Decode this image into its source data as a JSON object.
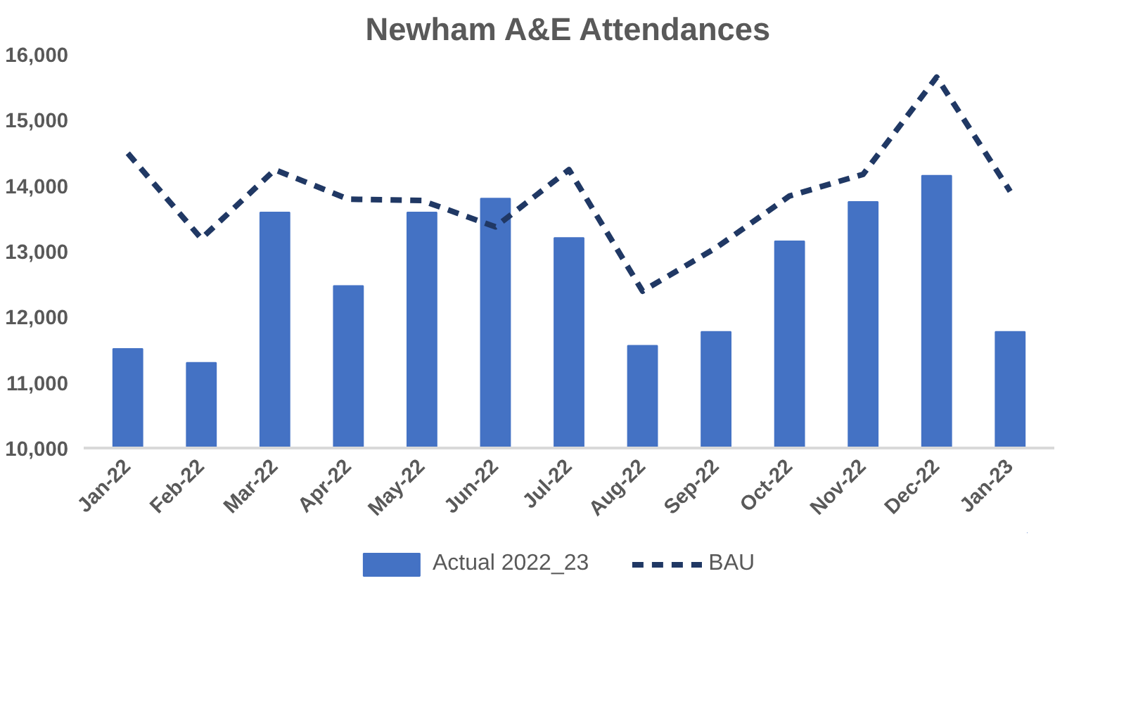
{
  "chart_data": {
    "type": "bar",
    "title": "Newham A&E Attendances",
    "categories": [
      "Jan-22",
      "Feb-22",
      "Mar-22",
      "Apr-22",
      "May-22",
      "Jun-22",
      "Jul-22",
      "Aug-22",
      "Sep-22",
      "Oct-22",
      "Nov-22",
      "Dec-22",
      "Jan-23"
    ],
    "series": [
      {
        "name": "Actual 2022_23",
        "color": "#4472c4",
        "values": [
          11510,
          11300,
          13590,
          12470,
          13590,
          13800,
          13200,
          11560,
          11770,
          13150,
          13750,
          14150,
          11770
        ]
      },
      {
        "name": "BAU",
        "type": "line",
        "color": "#203864",
        "line_style": "dashed",
        "values": [
          14490,
          13190,
          14240,
          13790,
          13770,
          13370,
          14240,
          12390,
          13050,
          13840,
          14170,
          15650,
          13910
        ]
      }
    ],
    "ylim": [
      10000,
      16000
    ],
    "yticks": [
      {
        "value": 10000,
        "label": "10,000"
      },
      {
        "value": 11000,
        "label": "11,000"
      },
      {
        "value": 12000,
        "label": "12,000"
      },
      {
        "value": 13000,
        "label": "13,000"
      },
      {
        "value": 14000,
        "label": "14,000"
      },
      {
        "value": 15000,
        "label": "15,000"
      },
      {
        "value": 16000,
        "label": "16,000"
      }
    ],
    "grid": false,
    "legend": "bottom"
  }
}
